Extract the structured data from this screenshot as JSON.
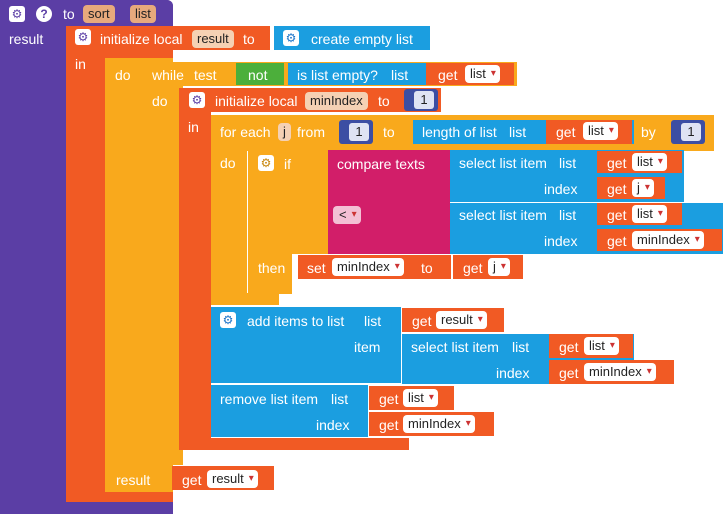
{
  "procedure": {
    "to": "to",
    "name": "sort",
    "param": "list",
    "result_label": "result"
  },
  "init_result": {
    "label": "initialize local",
    "var": "result",
    "to": "to",
    "in": "in"
  },
  "empty_list": {
    "label": "create empty list"
  },
  "do_label": "do",
  "while_block": {
    "label": "while",
    "test": "test",
    "not": "not",
    "is_empty": "is list empty?",
    "list_socket": "list",
    "get": "get",
    "var": "list",
    "do": "do"
  },
  "init_min": {
    "label": "initialize local",
    "var": "minIndex",
    "to": "to",
    "value": "1",
    "in": "in"
  },
  "for_each": {
    "label": "for each",
    "var": "j",
    "from": "from",
    "from_value": "1",
    "to": "to",
    "length_label": "length of list",
    "list_socket": "list",
    "get": "get",
    "list_var": "list",
    "by": "by",
    "by_value": "1",
    "do": "do"
  },
  "if_block": {
    "label": "if",
    "then": "then"
  },
  "compare": {
    "label": "compare texts",
    "operator": "<"
  },
  "select_a": {
    "label": "select list item",
    "list_socket": "list",
    "get": "get",
    "list_var": "list",
    "index": "index",
    "index_var": "j"
  },
  "select_b": {
    "label": "select list item",
    "list_socket": "list",
    "get": "get",
    "list_var": "list",
    "index": "index",
    "index_var": "minIndex"
  },
  "set_block": {
    "set": "set",
    "var": "minIndex",
    "to": "to",
    "get": "get",
    "value_var": "j"
  },
  "add_items": {
    "label": "add items to list",
    "list_socket": "list",
    "get": "get",
    "list_var": "result",
    "item": "item",
    "select_label": "select list item",
    "select_list": "list",
    "select_get": "get",
    "select_var": "list",
    "index": "index",
    "index_get": "get",
    "index_var": "minIndex"
  },
  "remove_item": {
    "label": "remove list item",
    "list_socket": "list",
    "get": "get",
    "list_var": "list",
    "index": "index",
    "index_get": "get",
    "index_var": "minIndex"
  },
  "return_result": {
    "label": "result",
    "get": "get",
    "var": "result"
  },
  "icons": {
    "gear": "gear-icon",
    "help": "help-icon",
    "dropdown": "dropdown-arrow-icon"
  },
  "colors": {
    "procedure": "#5b3ea5",
    "variable": "#f15a24",
    "control": "#f9a91c",
    "list": "#1b9ee0",
    "logic": "#4caf3b",
    "text": "#d21e69"
  }
}
